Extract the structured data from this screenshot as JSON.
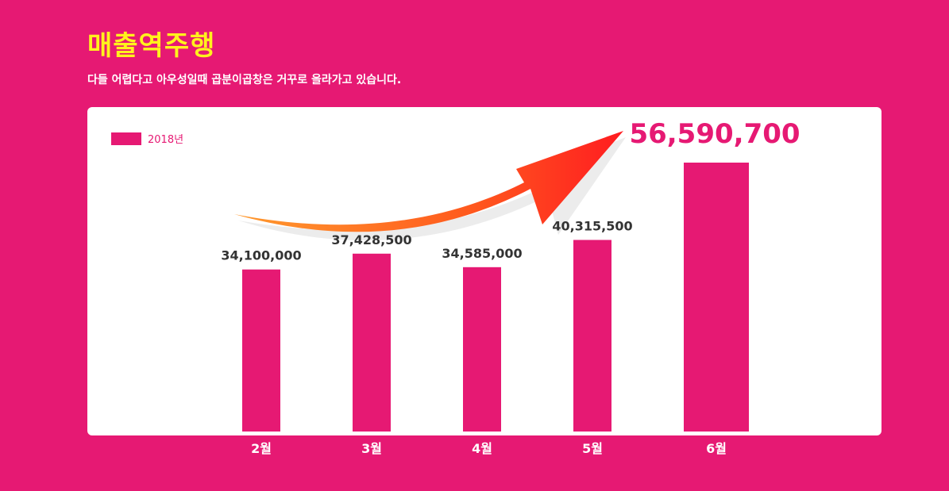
{
  "header": {
    "title": "매출역주행",
    "subtitle": "다들 어렵다고 아우성일때 곱분이곱창은 거꾸로 올라가고 있습니다."
  },
  "colors": {
    "background": "#e61973",
    "bar": "#e61973",
    "title": "#fff21c",
    "panel": "#ffffff",
    "value_label": "#333333",
    "highlight_label": "#e61973"
  },
  "chart_data": {
    "type": "bar",
    "categories": [
      "2월",
      "3월",
      "4월",
      "5월",
      "6월"
    ],
    "series": [
      {
        "name": "2018년",
        "values": [
          34100000,
          37428500,
          34585000,
          40315500,
          56590700
        ]
      }
    ],
    "data_labels": [
      "34,100,000",
      "37,428,500",
      "34,585,000",
      "40,315,500",
      "56,590,700"
    ],
    "highlight_index": 4,
    "legend": "top-left",
    "grid": false,
    "annotation": "upward-arrow-icon"
  }
}
